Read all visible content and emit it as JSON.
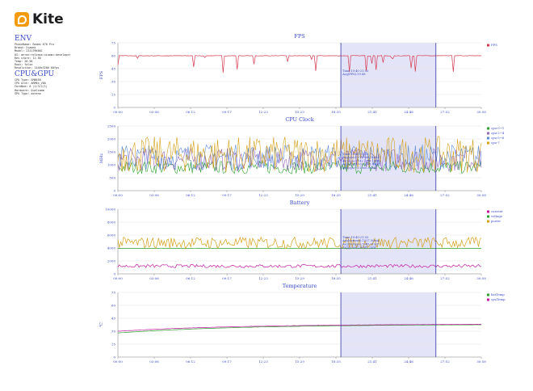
{
  "brand": {
    "name": "Kite",
    "color": "#f39c12"
  },
  "env": {
    "title": "ENV",
    "items": [
      "PhoneName: Redmi K70 Pro",
      "Brand: Xiaomi",
      "Model: 23117RK66C",
      "OS: anrok:release:xiaomi:developer",
      "Res store: 12.50",
      "Temp: 28.90",
      "Root: false",
      "Resolution: 1440x3200 60fps"
    ]
  },
  "cpu_gpu": {
    "title": "CPU&GPU",
    "items": [
      "CPU Type: SM8650",
      "CPU Arch: ARM64_V8A",
      "CoreNum: 8 (2/3/2/1)",
      "Hardware: Qualcomm",
      "GPU Type: adreno"
    ]
  },
  "time_ticks": [
    "00:00",
    "03:06",
    "06:12",
    "09:17",
    "12:23",
    "15:29",
    "18:35",
    "21:41",
    "24:46",
    "27:52",
    "30:58"
  ],
  "selection": {
    "start_min": 19.0,
    "end_min": 27.1,
    "fill": "#e4e4f8",
    "line": "#3333aa"
  },
  "chart_data": [
    {
      "type": "line",
      "title": "FPS",
      "ylabel": "FPS",
      "ylim": [
        0,
        75
      ],
      "yticks": [
        0,
        15,
        30,
        45,
        60,
        75
      ],
      "series": [
        {
          "name": "FPS",
          "color": "#d6384f",
          "base": 60,
          "noise": 0.3,
          "dips": 22,
          "dip_min": 40,
          "dip_max": 58
        }
      ],
      "tooltip": [
        "Time:19:40-21:53",
        "Avg(FPS):59.88"
      ]
    },
    {
      "type": "line",
      "title": "CPU Clock",
      "ylabel": "MHz",
      "ylim": [
        0,
        2500
      ],
      "yticks": [
        0,
        500,
        1000,
        1500,
        2000,
        2500
      ],
      "series": [
        {
          "name": "cpu-0~1",
          "color": "#2ca02c",
          "base": 900,
          "noise": 250
        },
        {
          "name": "cpu-2~4",
          "color": "#9467bd",
          "base": 1200,
          "noise": 450
        },
        {
          "name": "cpu-5~6",
          "color": "#5b8bd6",
          "base": 1300,
          "noise": 500
        },
        {
          "name": "cpu-7",
          "color": "#d4a017",
          "base": 1400,
          "noise": 700
        }
      ],
      "tooltip": [
        "Time:19:40-21:53",
        "Avg(cpu-0~1):960.3MHz",
        "Avg(cpu-2~4):1289.1MHz",
        "Avg(cpu-5~6):1348.6MHz",
        "Avg(cpu-7):1560.5MHz"
      ]
    },
    {
      "type": "line",
      "title": "Battery",
      "ylabel": "",
      "ylim": [
        0,
        10000
      ],
      "yticks": [
        0,
        2000,
        4000,
        6000,
        8000,
        10000
      ],
      "series": [
        {
          "name": "current",
          "color": "#c21aa3",
          "base": 1200,
          "noise": 250
        },
        {
          "name": "voltage",
          "color": "#2ca02c",
          "base": 3950,
          "noise": 10
        },
        {
          "name": "power",
          "color": "#d4a017",
          "base": 4800,
          "noise": 900
        }
      ],
      "tooltip": [
        "Time:19:40-21:53",
        "Avg(current):1227.30mA",
        "Avg(voltage):3949.31mV",
        "Avg(power):4848.2mW"
      ]
    },
    {
      "type": "line",
      "title": "Temperature",
      "ylabel": "℃",
      "ylim": [
        0,
        75
      ],
      "yticks": [
        0,
        15,
        30,
        45,
        60,
        75
      ],
      "series": [
        {
          "name": "batTemp",
          "color": "#2ca02c",
          "start": 28,
          "end": 37.5,
          "noise": 0.1
        },
        {
          "name": "cpuTemp",
          "color": "#c21aa3",
          "start": 30,
          "end": 38,
          "noise": 0.1
        }
      ],
      "tooltip": []
    }
  ]
}
